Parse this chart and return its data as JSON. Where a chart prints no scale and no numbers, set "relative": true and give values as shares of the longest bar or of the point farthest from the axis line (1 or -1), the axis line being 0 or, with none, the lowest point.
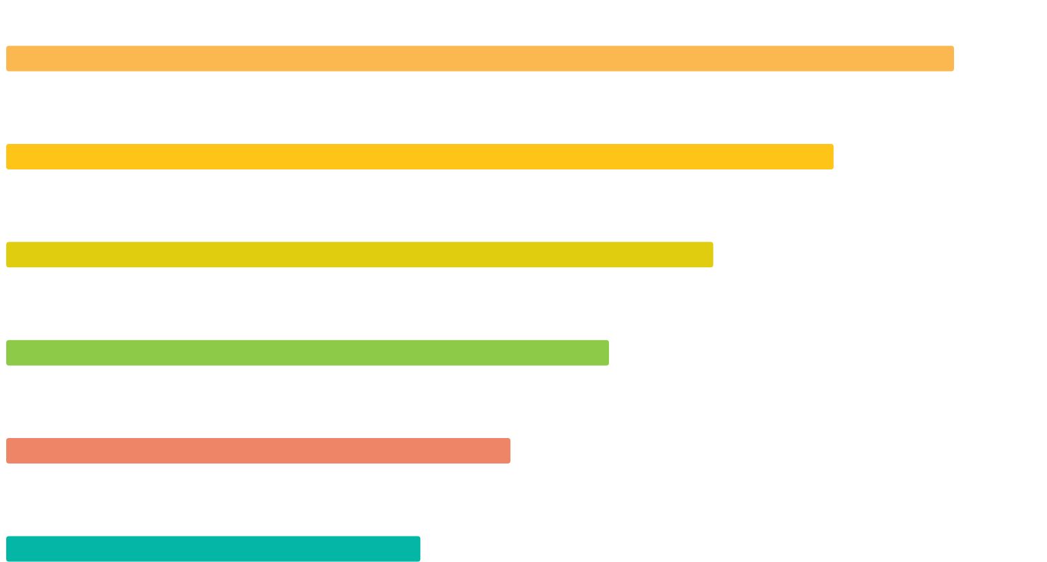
{
  "chart_data": {
    "type": "bar",
    "orientation": "horizontal",
    "relative": true,
    "categories": [
      null,
      null,
      null,
      null,
      null,
      null
    ],
    "values": [
      1,
      0.873,
      0.746,
      0.636,
      0.532,
      0.437
    ],
    "colors": [
      "#fbb850",
      "#fec418",
      "#e0cd10",
      "#8dca48",
      "#ed8566",
      "#04b6a5"
    ]
  }
}
